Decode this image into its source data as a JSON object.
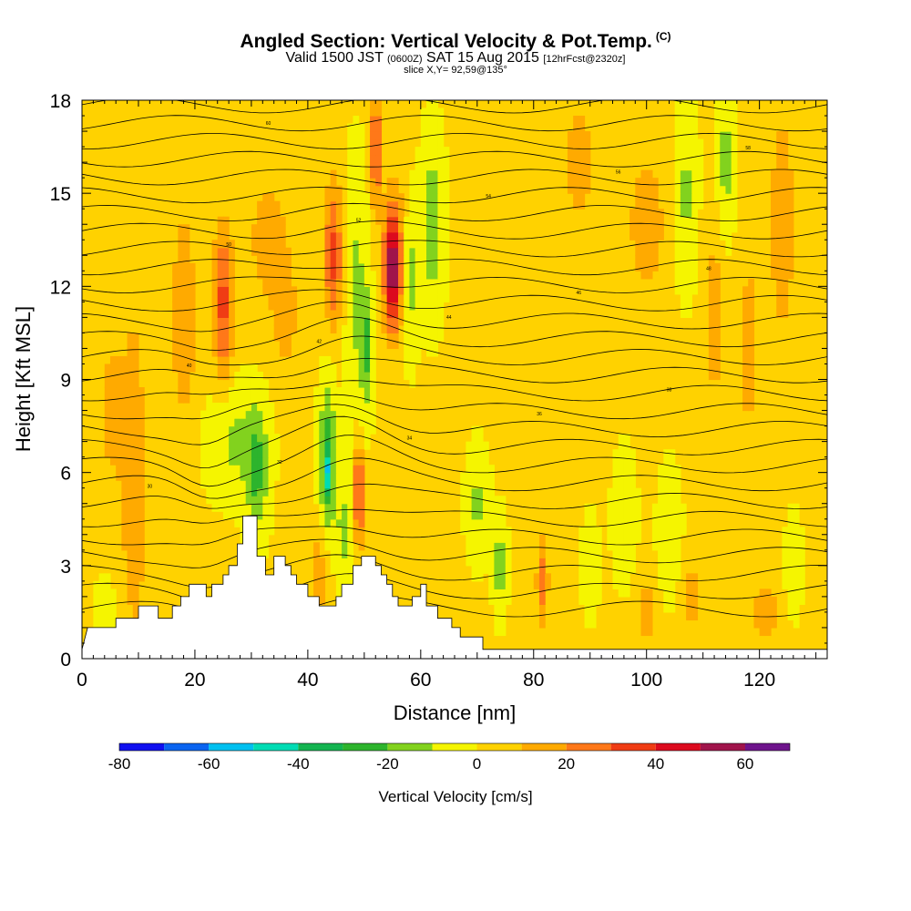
{
  "header": {
    "title": "Angled Section: Vertical Velocity & Pot.Temp.",
    "title_unit": "(C)",
    "valid_prefix": "Valid 1500 JST",
    "valid_utc": "(0600Z)",
    "valid_date": "SAT 15 Aug 2015",
    "forecast": "[12hrFcst@2320z]",
    "slice": "slice X,Y= 92,59@135°"
  },
  "chart_data": {
    "type": "heatmap",
    "title": "Angled Section: Vertical Velocity & Pot.Temp.",
    "xlabel": "Distance [nm]",
    "ylabel": "Height [Kft MSL]",
    "xlim": [
      0,
      132
    ],
    "ylim": [
      0,
      18
    ],
    "x_ticks": [
      0,
      20,
      40,
      60,
      80,
      100,
      120
    ],
    "y_ticks": [
      0,
      3,
      6,
      9,
      12,
      15,
      18
    ],
    "colorbar": {
      "label": "Vertical Velocity [cm/s]",
      "boundaries": [
        -80,
        -70,
        -60,
        -50,
        -40,
        -30,
        -20,
        -10,
        0,
        10,
        20,
        30,
        40,
        50,
        60,
        70
      ],
      "tick_labels": [
        -80,
        -60,
        -40,
        -20,
        0,
        20,
        40,
        60
      ],
      "colors": [
        "#1010f0",
        "#0a64f0",
        "#00c0f0",
        "#00dcb4",
        "#14b450",
        "#2db42d",
        "#82d21e",
        "#f5f500",
        "#ffd200",
        "#ffaa00",
        "#ff7819",
        "#f03c14",
        "#dc0a1e",
        "#a0144b",
        "#6e148c"
      ]
    },
    "background_value_cm_s": 2,
    "vertical_velocity_features": [
      {
        "x": 9,
        "h": 5.5,
        "wx": 3,
        "wh": 8,
        "value": 12
      },
      {
        "x": 18,
        "h": 11,
        "wx": 2.5,
        "wh": 4,
        "value": 14
      },
      {
        "x": 25,
        "h": 11.5,
        "wx": 1.7,
        "wh": 2.5,
        "value": 32
      },
      {
        "x": 33,
        "h": 13.5,
        "wx": 3.5,
        "wh": 2,
        "value": 14
      },
      {
        "x": 36,
        "h": 11,
        "wx": 2.5,
        "wh": 2,
        "value": 12
      },
      {
        "x": 44.5,
        "h": 13,
        "wx": 1.6,
        "wh": 2.3,
        "value": 32
      },
      {
        "x": 48.5,
        "h": 12,
        "wx": 2,
        "wh": 4,
        "value": -14
      },
      {
        "x": 50.5,
        "h": 10,
        "wx": 1.2,
        "wh": 2,
        "value": -22
      },
      {
        "x": 52,
        "h": 16.5,
        "wx": 0.8,
        "wh": 1.8,
        "value": 38
      },
      {
        "x": 55,
        "h": 12.5,
        "wx": 1.4,
        "wh": 1.8,
        "value": 45
      },
      {
        "x": 56,
        "h": 13,
        "wx": 3,
        "wh": 2.5,
        "value": 18
      },
      {
        "x": 58,
        "h": 12.5,
        "wx": 1.5,
        "wh": 2.5,
        "value": -25
      },
      {
        "x": 62,
        "h": 14,
        "wx": 2,
        "wh": 3,
        "value": -18
      },
      {
        "x": 27,
        "h": 7,
        "wx": 5,
        "wh": 1.8,
        "value": -14
      },
      {
        "x": 31,
        "h": 6,
        "wx": 2,
        "wh": 2,
        "value": -22
      },
      {
        "x": 43.5,
        "h": 6.5,
        "wx": 1.5,
        "wh": 2.5,
        "value": -28
      },
      {
        "x": 43.8,
        "h": 6,
        "wx": 0.4,
        "wh": 0.8,
        "value": -45
      },
      {
        "x": 49,
        "h": 5.3,
        "wx": 0.9,
        "wh": 1.6,
        "value": 38
      },
      {
        "x": 46.5,
        "h": 4,
        "wx": 1.8,
        "wh": 2,
        "value": -14
      },
      {
        "x": 42,
        "h": 2.8,
        "wx": 2,
        "wh": 1.5,
        "value": 14
      },
      {
        "x": 70,
        "h": 5,
        "wx": 2,
        "wh": 1.8,
        "value": -14
      },
      {
        "x": 74,
        "h": 3,
        "wx": 1.2,
        "wh": 1.5,
        "value": -18
      },
      {
        "x": 81.5,
        "h": 2.5,
        "wx": 1,
        "wh": 1.5,
        "value": 22
      },
      {
        "x": 90,
        "h": 3,
        "wx": 1.5,
        "wh": 1.5,
        "value": -12
      },
      {
        "x": 96,
        "h": 4.5,
        "wx": 2,
        "wh": 2,
        "value": -12
      },
      {
        "x": 104,
        "h": 4,
        "wx": 2,
        "wh": 2,
        "value": -12
      },
      {
        "x": 88,
        "h": 16,
        "wx": 3,
        "wh": 2,
        "value": 14
      },
      {
        "x": 100,
        "h": 14,
        "wx": 3.5,
        "wh": 2.5,
        "value": 14
      },
      {
        "x": 107,
        "h": 15,
        "wx": 2,
        "wh": 3,
        "value": -14
      },
      {
        "x": 114,
        "h": 16,
        "wx": 1.5,
        "wh": 2.5,
        "value": -16
      },
      {
        "x": 124,
        "h": 14,
        "wx": 2.5,
        "wh": 4,
        "value": 14
      },
      {
        "x": 112,
        "h": 11,
        "wx": 2,
        "wh": 3,
        "value": 14
      },
      {
        "x": 118,
        "h": 10,
        "wx": 1.6,
        "wh": 2.5,
        "value": 18
      },
      {
        "x": 126,
        "h": 3,
        "wx": 1.5,
        "wh": 1.5,
        "value": -12
      },
      {
        "x": 121,
        "h": 1.5,
        "wx": 2.5,
        "wh": 1.2,
        "value": 14
      },
      {
        "x": 108,
        "h": 2,
        "wx": 2,
        "wh": 1.2,
        "value": 14
      },
      {
        "x": 100,
        "h": 1.5,
        "wx": 2,
        "wh": 1.2,
        "value": 12
      },
      {
        "x": 5,
        "h": 1.6,
        "wx": 3,
        "wh": 1.5,
        "value": -6
      },
      {
        "x": 5,
        "h": 8,
        "wx": 2,
        "wh": 2,
        "value": 12
      }
    ],
    "terrain_kft": [
      [
        0,
        0.3
      ],
      [
        1,
        1
      ],
      [
        6,
        1
      ],
      [
        6,
        1.3
      ],
      [
        10,
        1.3
      ],
      [
        10,
        1.7
      ],
      [
        13.5,
        1.7
      ],
      [
        13.5,
        1.3
      ],
      [
        16,
        1.3
      ],
      [
        16,
        1.7
      ],
      [
        17.5,
        1.7
      ],
      [
        17.5,
        2
      ],
      [
        19,
        2
      ],
      [
        19,
        2.4
      ],
      [
        22,
        2.4
      ],
      [
        22,
        2
      ],
      [
        23,
        2
      ],
      [
        23,
        2.4
      ],
      [
        25,
        2.4
      ],
      [
        25,
        2.7
      ],
      [
        26,
        2.7
      ],
      [
        26,
        3
      ],
      [
        27.5,
        3
      ],
      [
        27.5,
        3.7
      ],
      [
        28.5,
        3.7
      ],
      [
        28.5,
        4.6
      ],
      [
        31,
        4.6
      ],
      [
        31,
        3.3
      ],
      [
        32.5,
        3.3
      ],
      [
        32.5,
        2.7
      ],
      [
        34,
        2.7
      ],
      [
        34,
        3.3
      ],
      [
        36,
        3.3
      ],
      [
        36,
        3
      ],
      [
        37,
        3
      ],
      [
        37,
        2.7
      ],
      [
        38,
        2.7
      ],
      [
        38,
        2.4
      ],
      [
        40,
        2.4
      ],
      [
        40,
        2
      ],
      [
        42,
        2
      ],
      [
        42,
        1.7
      ],
      [
        45,
        1.7
      ],
      [
        45,
        2
      ],
      [
        46,
        2
      ],
      [
        46,
        2.4
      ],
      [
        48,
        2.4
      ],
      [
        48,
        3
      ],
      [
        49.5,
        3
      ],
      [
        49.5,
        3.3
      ],
      [
        52,
        3.3
      ],
      [
        52,
        3
      ],
      [
        53,
        3
      ],
      [
        53,
        2.7
      ],
      [
        54,
        2.7
      ],
      [
        54,
        2.4
      ],
      [
        55,
        2.4
      ],
      [
        55,
        2
      ],
      [
        56,
        2
      ],
      [
        56,
        1.7
      ],
      [
        58.5,
        1.7
      ],
      [
        58.5,
        2
      ],
      [
        60,
        2
      ],
      [
        60,
        2.4
      ],
      [
        61,
        2.4
      ],
      [
        61,
        1.7
      ],
      [
        63,
        1.7
      ],
      [
        63,
        1.3
      ],
      [
        65.5,
        1.3
      ],
      [
        65.5,
        1
      ],
      [
        67,
        1
      ],
      [
        67,
        0.7
      ],
      [
        71,
        0.7
      ],
      [
        71,
        0.3
      ],
      [
        132,
        0.3
      ]
    ],
    "potential_temperature_contour_labels": [
      "30",
      "32",
      "34",
      "36",
      "38",
      "40",
      "42",
      "44",
      "46",
      "48",
      "50",
      "52",
      "54",
      "56",
      "58",
      "60"
    ]
  }
}
